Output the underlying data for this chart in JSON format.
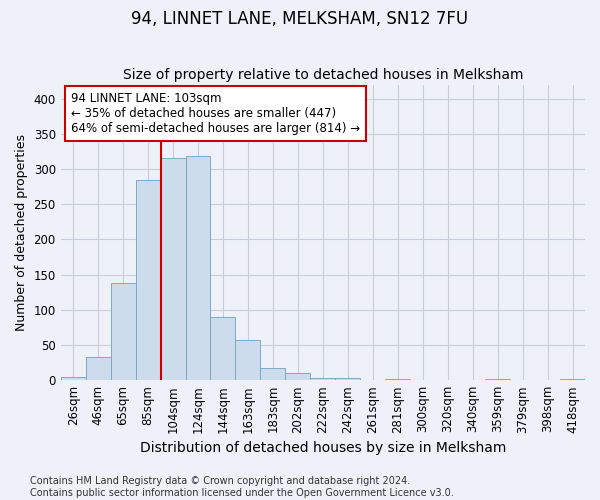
{
  "title": "94, LINNET LANE, MELKSHAM, SN12 7FU",
  "subtitle": "Size of property relative to detached houses in Melksham",
  "xlabel": "Distribution of detached houses by size in Melksham",
  "ylabel": "Number of detached properties",
  "footer_line1": "Contains HM Land Registry data © Crown copyright and database right 2024.",
  "footer_line2": "Contains public sector information licensed under the Open Government Licence v3.0.",
  "bins": [
    "26sqm",
    "46sqm",
    "65sqm",
    "85sqm",
    "104sqm",
    "124sqm",
    "144sqm",
    "163sqm",
    "183sqm",
    "202sqm",
    "222sqm",
    "242sqm",
    "261sqm",
    "281sqm",
    "300sqm",
    "320sqm",
    "340sqm",
    "359sqm",
    "379sqm",
    "398sqm",
    "418sqm"
  ],
  "values": [
    5,
    33,
    138,
    284,
    315,
    318,
    90,
    57,
    18,
    10,
    3,
    3,
    0,
    1,
    0,
    0,
    0,
    1,
    0,
    0,
    2
  ],
  "bar_color": "#ccdcec",
  "bar_edge_color": "#7aaac8",
  "vline_x_index": 4,
  "vline_color": "#cc0000",
  "annotation_text": "94 LINNET LANE: 103sqm\n← 35% of detached houses are smaller (447)\n64% of semi-detached houses are larger (814) →",
  "annotation_box_color": "white",
  "annotation_box_edge_color": "#cc0000",
  "ylim": [
    0,
    420
  ],
  "yticks": [
    0,
    50,
    100,
    150,
    200,
    250,
    300,
    350,
    400
  ],
  "grid_color": "#c8ccd8",
  "bg_color": "#eef2f8",
  "title_fontsize": 12,
  "subtitle_fontsize": 10,
  "xlabel_fontsize": 10,
  "ylabel_fontsize": 9,
  "tick_fontsize": 8.5,
  "footer_fontsize": 7,
  "annot_fontsize": 8.5
}
